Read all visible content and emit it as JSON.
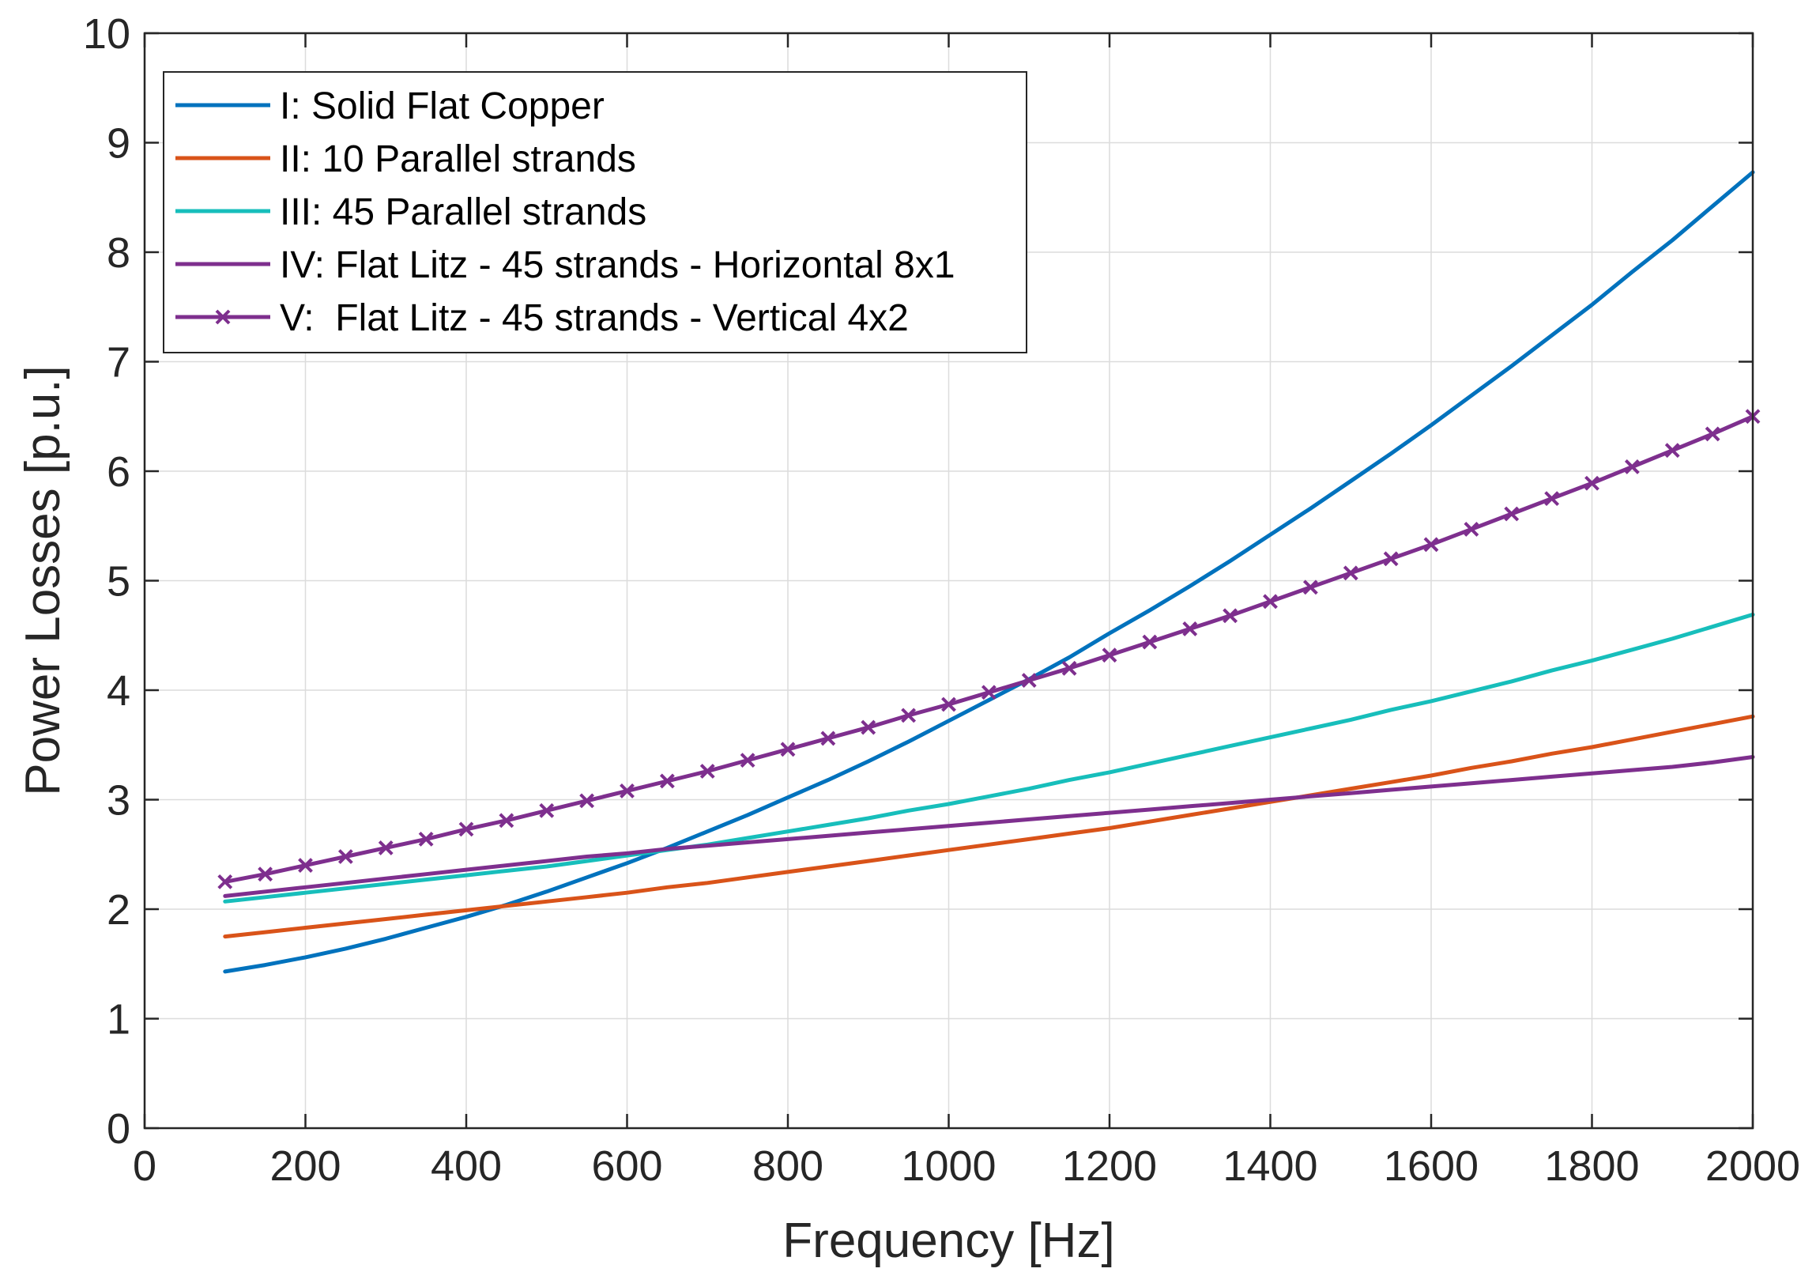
{
  "chart_data": {
    "type": "line",
    "title": "",
    "xlabel": "Frequency [Hz]",
    "ylabel": "Power Losses [p.u.]",
    "xlim": [
      0,
      2000
    ],
    "ylim": [
      0,
      10
    ],
    "xticks": [
      0,
      200,
      400,
      600,
      800,
      1000,
      1200,
      1400,
      1600,
      1800,
      2000
    ],
    "yticks": [
      0,
      1,
      2,
      3,
      4,
      5,
      6,
      7,
      8,
      9,
      10
    ],
    "grid": true,
    "legend_position": "top-left",
    "x": [
      100,
      150,
      200,
      250,
      300,
      350,
      400,
      450,
      500,
      550,
      600,
      650,
      700,
      750,
      800,
      850,
      900,
      950,
      1000,
      1050,
      1100,
      1150,
      1200,
      1250,
      1300,
      1350,
      1400,
      1450,
      1500,
      1550,
      1600,
      1650,
      1700,
      1750,
      1800,
      1850,
      1900,
      1950,
      2000
    ],
    "series": [
      {
        "name": "I: Solid Flat Copper",
        "color": "#0072BD",
        "marker": "none",
        "values": [
          1.43,
          1.49,
          1.56,
          1.64,
          1.73,
          1.83,
          1.93,
          2.04,
          2.16,
          2.29,
          2.42,
          2.56,
          2.71,
          2.86,
          3.02,
          3.18,
          3.35,
          3.53,
          3.72,
          3.91,
          4.1,
          4.3,
          4.52,
          4.73,
          4.95,
          5.18,
          5.42,
          5.66,
          5.91,
          6.16,
          6.42,
          6.69,
          6.96,
          7.24,
          7.52,
          7.82,
          8.11,
          8.42,
          8.73
        ]
      },
      {
        "name": "II: 10 Parallel strands",
        "color": "#D95319",
        "marker": "none",
        "values": [
          1.75,
          1.79,
          1.83,
          1.87,
          1.91,
          1.95,
          1.99,
          2.03,
          2.07,
          2.11,
          2.15,
          2.2,
          2.24,
          2.29,
          2.34,
          2.39,
          2.44,
          2.49,
          2.54,
          2.59,
          2.64,
          2.69,
          2.74,
          2.8,
          2.86,
          2.92,
          2.98,
          3.04,
          3.1,
          3.16,
          3.22,
          3.29,
          3.35,
          3.42,
          3.48,
          3.55,
          3.62,
          3.69,
          3.76
        ]
      },
      {
        "name": "III: 45 Parallel strands",
        "color": "#17BEBB",
        "marker": "none",
        "values": [
          2.07,
          2.11,
          2.15,
          2.19,
          2.23,
          2.27,
          2.31,
          2.35,
          2.39,
          2.44,
          2.49,
          2.54,
          2.59,
          2.65,
          2.71,
          2.77,
          2.83,
          2.9,
          2.96,
          3.03,
          3.1,
          3.18,
          3.25,
          3.33,
          3.41,
          3.49,
          3.57,
          3.65,
          3.73,
          3.82,
          3.9,
          3.99,
          4.08,
          4.18,
          4.27,
          4.37,
          4.47,
          4.58,
          4.69
        ]
      },
      {
        "name": "IV: Flat Litz - 45 strands - Horizontal 8x1",
        "color": "#7E2F8E",
        "marker": "none",
        "values": [
          2.12,
          2.16,
          2.2,
          2.24,
          2.28,
          2.32,
          2.36,
          2.4,
          2.44,
          2.48,
          2.51,
          2.55,
          2.58,
          2.61,
          2.64,
          2.67,
          2.7,
          2.73,
          2.76,
          2.79,
          2.82,
          2.85,
          2.88,
          2.91,
          2.94,
          2.97,
          3.0,
          3.03,
          3.06,
          3.09,
          3.12,
          3.15,
          3.18,
          3.21,
          3.24,
          3.27,
          3.3,
          3.34,
          3.39
        ]
      },
      {
        "name": "V:  Flat Litz - 45 strands - Vertical 4x2",
        "color": "#7E2F8E",
        "marker": "x",
        "values": [
          2.25,
          2.32,
          2.4,
          2.48,
          2.56,
          2.64,
          2.73,
          2.81,
          2.9,
          2.99,
          3.08,
          3.17,
          3.26,
          3.36,
          3.46,
          3.56,
          3.66,
          3.77,
          3.87,
          3.98,
          4.09,
          4.2,
          4.32,
          4.44,
          4.56,
          4.68,
          4.81,
          4.94,
          5.07,
          5.2,
          5.33,
          5.47,
          5.61,
          5.75,
          5.89,
          6.04,
          6.19,
          6.34,
          6.5
        ]
      }
    ]
  }
}
